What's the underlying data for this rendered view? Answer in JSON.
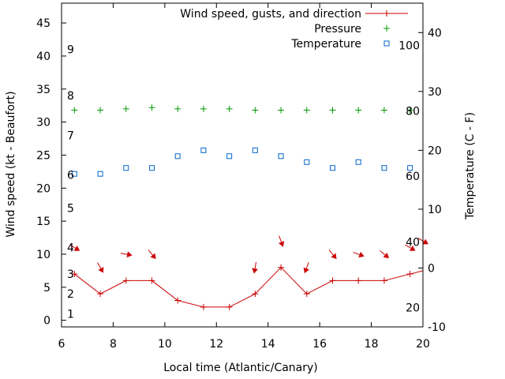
{
  "chart_data": {
    "type": "line",
    "xlabel": "Local time (Atlantic/Canary)",
    "ylabel_left": "Wind speed (kt - Beaufort)",
    "ylabel_right": "Temperature (C - F)",
    "xlim": [
      6,
      20
    ],
    "ylim_left": [
      -1,
      48
    ],
    "ylim_right": [
      -10,
      45
    ],
    "x_ticks": [
      "6",
      "8",
      "10",
      "12",
      "14",
      "16",
      "18",
      "20"
    ],
    "y_left_ticks": [
      "0",
      "5",
      "10",
      "15",
      "20",
      "25",
      "30",
      "35",
      "40",
      "45"
    ],
    "y_right_ticks": [
      "-10",
      "0",
      "10",
      "20",
      "30",
      "40"
    ],
    "beaufort_scale": [
      {
        "label": "1",
        "kt": 1
      },
      {
        "label": "2",
        "kt": 4
      },
      {
        "label": "3",
        "kt": 7
      },
      {
        "label": "4",
        "kt": 11
      },
      {
        "label": "5",
        "kt": 17
      },
      {
        "label": "6",
        "kt": 22
      },
      {
        "label": "7",
        "kt": 28
      },
      {
        "label": "8",
        "kt": 34
      },
      {
        "label": "9",
        "kt": 41
      }
    ],
    "fahrenheit_scale": [
      {
        "label": "20",
        "c": -6.7
      },
      {
        "label": "40",
        "c": 4.4
      },
      {
        "label": "60",
        "c": 15.6
      },
      {
        "label": "80",
        "c": 26.7
      },
      {
        "label": "100",
        "c": 37.8
      }
    ],
    "legend_position": "top-right",
    "series": [
      {
        "name": "Wind speed, gusts, and direction",
        "axis": "left",
        "color": "#cc0000",
        "x": [
          6.5,
          7.5,
          8.5,
          9.5,
          10.5,
          11.5,
          12.5,
          13.5,
          14.5,
          15.5,
          16.5,
          17.5,
          18.5,
          19.5,
          20
        ],
        "values": [
          7,
          4,
          6,
          6,
          3,
          2,
          2,
          4,
          8,
          4,
          6,
          6,
          6,
          7,
          7.5
        ],
        "direction_arrows": [
          {
            "x": 6.5,
            "kt": 11,
            "angle": 300
          },
          {
            "x": 7.5,
            "kt": 8,
            "angle": 330
          },
          {
            "x": 8.5,
            "kt": 10,
            "angle": 280
          },
          {
            "x": 9.5,
            "kt": 10,
            "angle": 320
          },
          {
            "x": 13.5,
            "kt": 8,
            "angle": 10
          },
          {
            "x": 14.5,
            "kt": 12,
            "angle": 340
          },
          {
            "x": 15.5,
            "kt": 8,
            "angle": 20
          },
          {
            "x": 16.5,
            "kt": 10,
            "angle": 320
          },
          {
            "x": 17.5,
            "kt": 10,
            "angle": 290
          },
          {
            "x": 18.5,
            "kt": 10,
            "angle": 310
          },
          {
            "x": 19.5,
            "kt": 11,
            "angle": 300
          },
          {
            "x": 20,
            "kt": 12,
            "angle": 300
          }
        ]
      },
      {
        "name": "Pressure",
        "axis": "left",
        "color": "#009900",
        "x": [
          6.5,
          7.5,
          8.5,
          9.5,
          10.5,
          11.5,
          12.5,
          13.5,
          14.5,
          15.5,
          16.5,
          17.5,
          18.5,
          19.5
        ],
        "values": [
          31.8,
          31.8,
          32.0,
          32.2,
          32.0,
          32.0,
          32.0,
          31.8,
          31.8,
          31.8,
          31.8,
          31.8,
          31.8,
          31.8
        ]
      },
      {
        "name": "Temperature",
        "axis": "right",
        "color": "#0066cc",
        "x": [
          6.5,
          7.5,
          8.5,
          9.5,
          10.5,
          11.5,
          12.5,
          13.5,
          14.5,
          15.5,
          16.5,
          17.5,
          18.5,
          19.5
        ],
        "values": [
          16,
          16,
          17,
          17,
          19,
          20,
          19,
          20,
          19,
          18,
          17,
          18,
          17,
          17
        ]
      }
    ]
  }
}
